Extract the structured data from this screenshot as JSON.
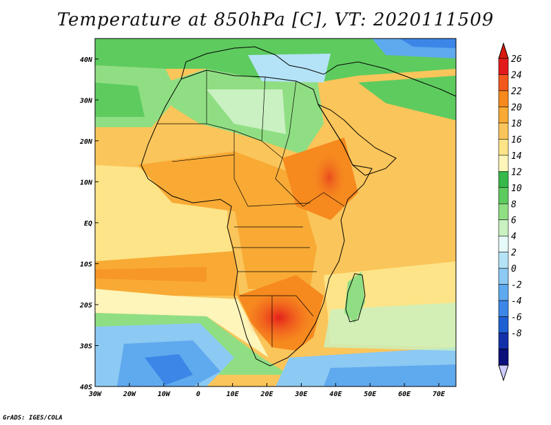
{
  "title": "Temperature at 850hPa [C], VT: 2020111509",
  "credit": "GrADS: IGES/COLA",
  "map": {
    "lon_range": [
      -30,
      75
    ],
    "lat_range": [
      -40,
      45
    ],
    "lon_ticks": [
      {
        "value": -30,
        "label": "30W"
      },
      {
        "value": -20,
        "label": "20W"
      },
      {
        "value": -10,
        "label": "10W"
      },
      {
        "value": 0,
        "label": "0"
      },
      {
        "value": 10,
        "label": "10E"
      },
      {
        "value": 20,
        "label": "20E"
      },
      {
        "value": 30,
        "label": "30E"
      },
      {
        "value": 40,
        "label": "40E"
      },
      {
        "value": 50,
        "label": "50E"
      },
      {
        "value": 60,
        "label": "60E"
      },
      {
        "value": 70,
        "label": "70E"
      }
    ],
    "lat_ticks": [
      {
        "value": 40,
        "label": "40N"
      },
      {
        "value": 30,
        "label": "30N"
      },
      {
        "value": 20,
        "label": "20N"
      },
      {
        "value": 10,
        "label": "10N"
      },
      {
        "value": 0,
        "label": "EQ"
      },
      {
        "value": -10,
        "label": "10S"
      },
      {
        "value": -20,
        "label": "20S"
      },
      {
        "value": -30,
        "label": "30S"
      },
      {
        "value": -40,
        "label": "40S"
      }
    ]
  },
  "colorbar": {
    "levels": [
      "26",
      "24",
      "22",
      "20",
      "18",
      "16",
      "14",
      "12",
      "10",
      "8",
      "6",
      "4",
      "2",
      "0",
      "-2",
      "-4",
      "-6",
      "-8"
    ],
    "colors": [
      "#e31a1c",
      "#f3581c",
      "#f68a1f",
      "#f8aa35",
      "#fac55a",
      "#fde488",
      "#fdf5b9",
      "#36b84a",
      "#5ecb5f",
      "#90de83",
      "#c9f1c1",
      "#e6fbf9",
      "#b4e3f7",
      "#8cc9f3",
      "#5fa9ee",
      "#3c86e7",
      "#1f5fd4",
      "#1230a8",
      "#0b0f7a"
    ],
    "top_color": "#d7190f",
    "bottom_color": "#ccccff"
  }
}
